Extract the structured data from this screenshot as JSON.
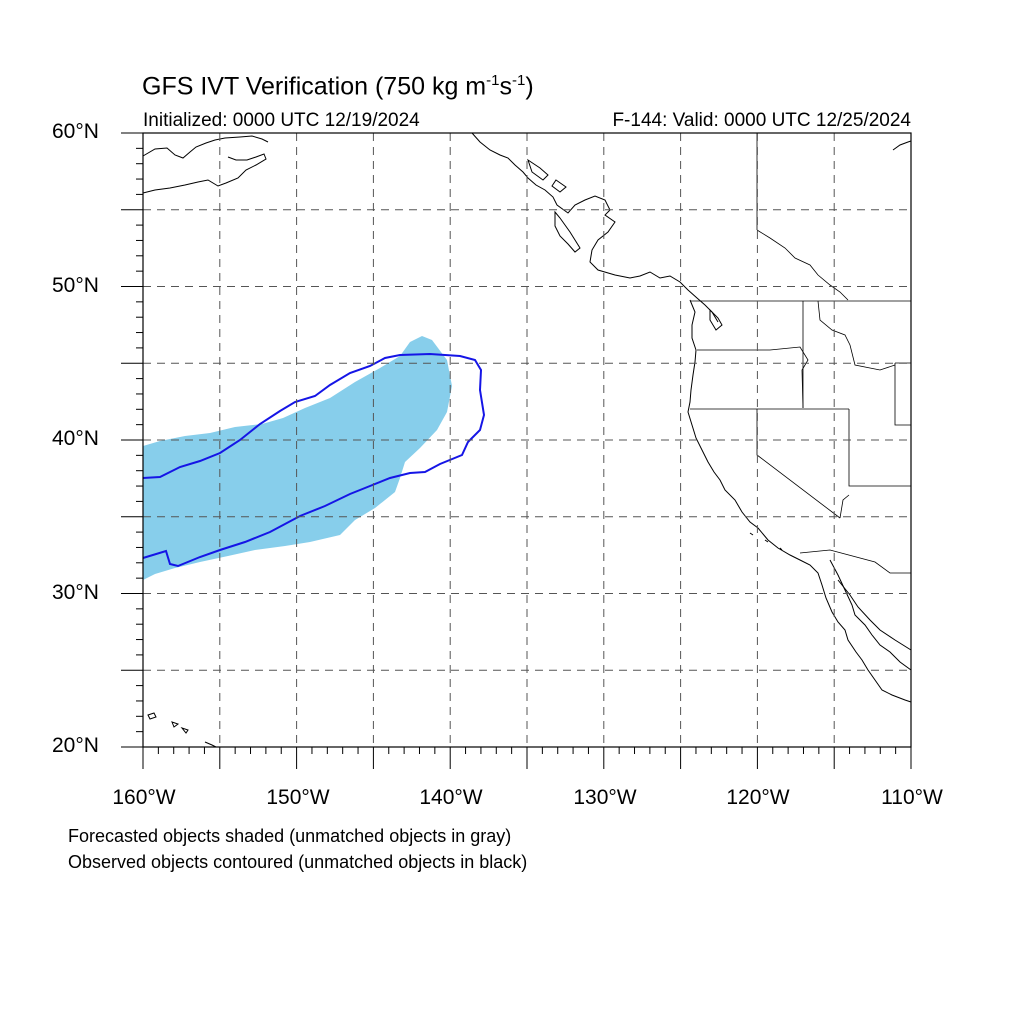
{
  "header": {
    "title_main": "GFS IVT Verification (750 kg m",
    "title_exp1": "-1",
    "title_mid": "s",
    "title_exp2": "-1",
    "title_end": ")",
    "initialized": "Initialized: 0000 UTC 12/19/2024",
    "valid": "F-144: Valid: 0000 UTC 12/25/2024"
  },
  "axes": {
    "y_labels": [
      "60°N",
      "50°N",
      "40°N",
      "30°N",
      "20°N"
    ],
    "x_labels": [
      "160°W",
      "150°W",
      "140°W",
      "130°W",
      "120°W",
      "110°W"
    ]
  },
  "map": {
    "lon_range": [
      -160,
      -110
    ],
    "lat_range": [
      20,
      60
    ],
    "grid_spacing_deg": 5,
    "colors": {
      "forecast_fill": "#87ceeb",
      "observed_contour": "#1515e6",
      "coastline": "#000000",
      "grid": "#555555"
    }
  },
  "legend": {
    "line1": "Forecasted objects shaded (unmatched objects in gray)",
    "line2": "Observed objects contoured (unmatched objects in black)"
  }
}
